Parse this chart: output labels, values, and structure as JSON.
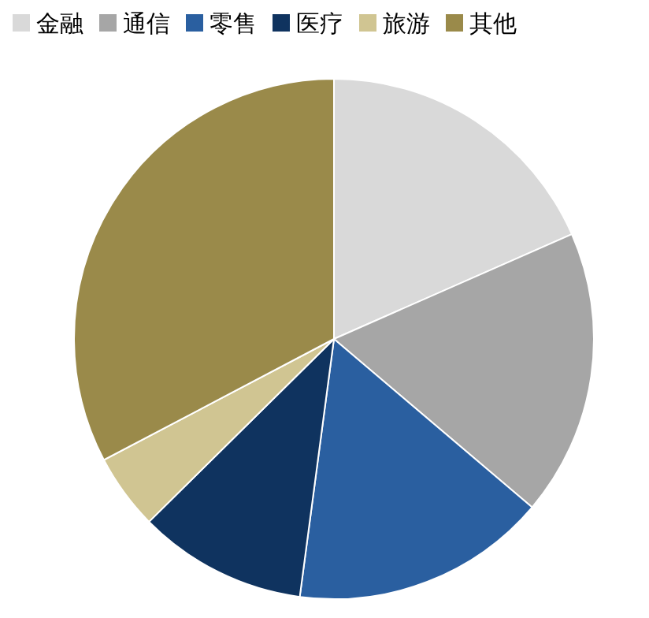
{
  "chart_data": {
    "type": "pie",
    "categories": [
      "金融",
      "通信",
      "零售",
      "医疗",
      "旅游",
      "其他"
    ],
    "values": [
      18.4,
      17.8,
      15.9,
      10.5,
      4.7,
      32.7
    ],
    "colors": [
      "#d9d9d9",
      "#a6a6a6",
      "#2a5fa0",
      "#0f335f",
      "#d0c592",
      "#9a8a4a"
    ],
    "legend": "top"
  }
}
